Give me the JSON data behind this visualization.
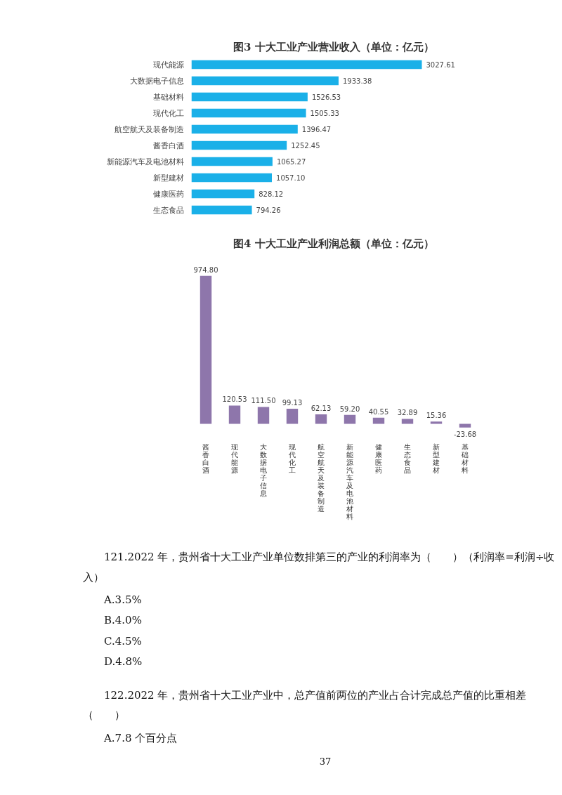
{
  "chart_data": [
    {
      "type": "bar",
      "orientation": "horizontal",
      "title": "图3  十大工业产业营业收入（单位：亿元）",
      "categories": [
        "现代能源",
        "大数据电子信息",
        "基础材料",
        "现代化工",
        "航空航天及装备制造",
        "酱香白酒",
        "新能源汽车及电池材料",
        "新型建材",
        "健康医药",
        "生态食品"
      ],
      "values": [
        3027.61,
        1933.38,
        1526.53,
        1505.33,
        1396.47,
        1252.45,
        1065.27,
        1057.1,
        828.12,
        794.26
      ],
      "value_labels": [
        "3027.61",
        "1933.38",
        "1526.53",
        "1505.33",
        "1396.47",
        "1252.45",
        "1065.27",
        "1057.10",
        "828.12",
        "794.26"
      ],
      "color": "#1ab0e8",
      "tick_labels": "y",
      "grid": false
    },
    {
      "type": "bar",
      "title": "图4  十大工业产业利润总额（单位：亿元）",
      "categories": [
        "酱香白酒",
        "现代能源",
        "大数据电子信息",
        "现代化工",
        "航空航天及装备制造",
        "新能源汽车及电池材料",
        "健康医药",
        "生态食品",
        "新型建材",
        "基础材料"
      ],
      "values": [
        974.8,
        120.53,
        111.5,
        99.13,
        62.13,
        59.2,
        40.55,
        32.89,
        15.36,
        -23.68
      ],
      "value_labels": [
        "974.80",
        "120.53",
        "111.50",
        "99.13",
        "62.13",
        "59.20",
        "40.55",
        "32.89",
        "15.36",
        "-23.68"
      ],
      "color": "#8e76ab",
      "tick_labels": "x",
      "grid": false,
      "annotations": [
        "121.2022 年，贵州省十大工业产业单位数排第三的产业的利润率为（　　）（利润率=利润÷收入）",
        "A.3.5%",
        "B.4.0%",
        "C.4.5%",
        "D.4.8%",
        "122.2022 年，贵州省十大工业产业中，总产值前两位的产业占合计完成总产值的比重相差（　　）",
        "A.7.8 个百分点",
        "37"
      ]
    }
  ]
}
